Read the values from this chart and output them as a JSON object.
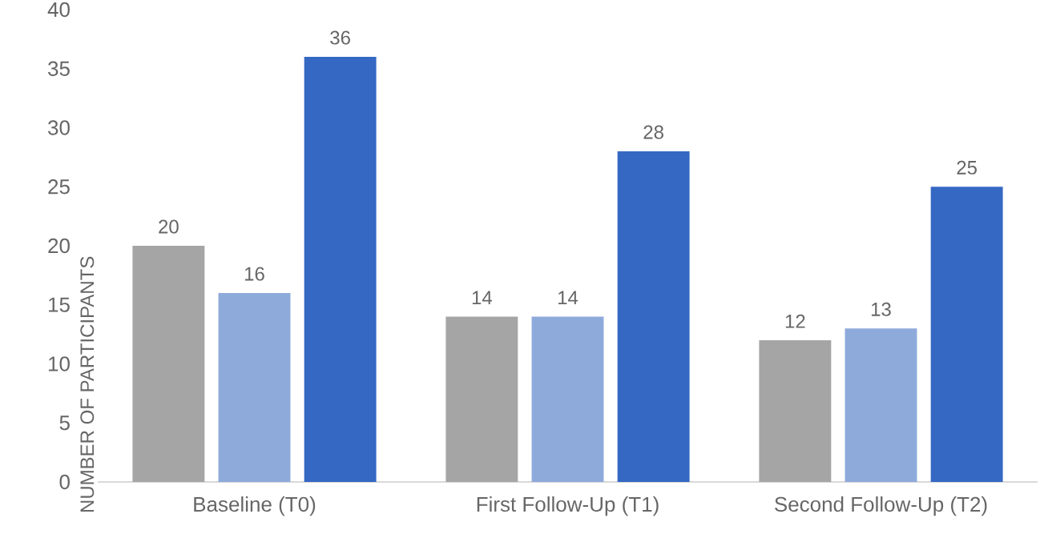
{
  "chart_data": {
    "type": "bar",
    "ylabel": "NUMBER OF PARTICIPANTS",
    "categories": [
      "Baseline (T0)",
      "First Follow-Up (T1)",
      "Second Follow-Up (T2)"
    ],
    "series": [
      {
        "color": "#a5a5a5",
        "values": [
          20,
          14,
          12
        ]
      },
      {
        "color": "#8eaadb",
        "values": [
          16,
          14,
          13
        ]
      },
      {
        "color": "#3568c3",
        "values": [
          36,
          28,
          25
        ]
      }
    ],
    "ylim": [
      0,
      40
    ],
    "yticks": [
      0,
      5,
      10,
      15,
      20,
      25,
      30,
      35,
      40
    ],
    "data_labels": true
  }
}
